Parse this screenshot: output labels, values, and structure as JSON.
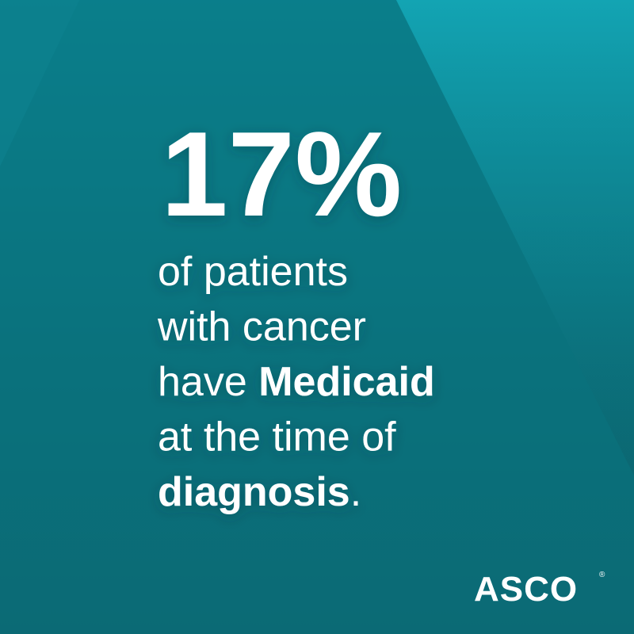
{
  "stat": "17%",
  "lines": [
    [
      {
        "text": "of patients",
        "bold": false
      }
    ],
    [
      {
        "text": "with cancer",
        "bold": false
      }
    ],
    [
      {
        "text": "have ",
        "bold": false
      },
      {
        "text": "Medicaid",
        "bold": true
      }
    ],
    [
      {
        "text": "at the time of",
        "bold": false
      }
    ],
    [
      {
        "text": "diagnosis",
        "bold": true
      },
      {
        "text": ".",
        "bold": false
      }
    ]
  ],
  "logo": {
    "text": "ASCO",
    "mark": "®"
  }
}
